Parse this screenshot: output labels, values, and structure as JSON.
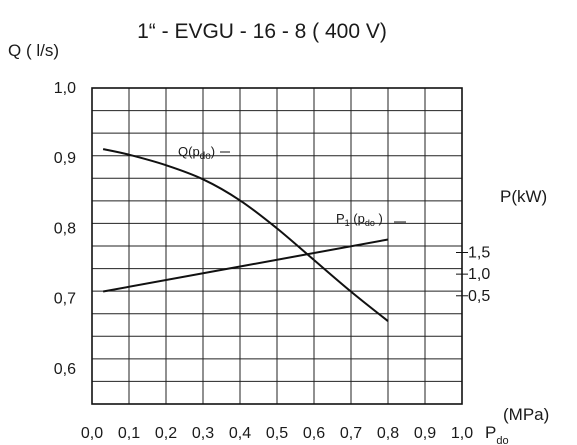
{
  "chart_data": {
    "type": "line",
    "title": "1“ - EVGU - 16 - 8 ( 400 V)",
    "x_axis": {
      "label_main": "P",
      "label_sub": "do",
      "unit": "(MPa)",
      "range": [
        0,
        1.0
      ],
      "ticks": [
        0.0,
        0.1,
        0.2,
        0.3,
        0.4,
        0.5,
        0.6,
        0.7,
        0.8,
        0.9,
        1.0
      ],
      "tick_labels": [
        "0,0",
        "0,1",
        "0,2",
        "0,3",
        "0,4",
        "0,5",
        "0,6",
        "0,7",
        "0,8",
        "0,9",
        "1,0"
      ]
    },
    "y_axis_left": {
      "label": "Q ( l/s)",
      "range": [
        0.55,
        1.0
      ],
      "ticks": [
        1.0,
        0.9,
        0.8,
        0.7,
        0.6
      ],
      "tick_labels": [
        "1,0",
        "0,9",
        "0,8",
        "0,7",
        "0,6"
      ]
    },
    "y_axis_right": {
      "label": "P(kW)",
      "range": [
        -2.0,
        5.3
      ],
      "ticks": [
        1.5,
        1.0,
        0.5
      ],
      "tick_labels": [
        "1,5",
        "1,0",
        "0,5"
      ]
    },
    "grid": true,
    "series": [
      {
        "name": "Q(p_do)",
        "label_main": "Q(p",
        "label_sub": "do",
        "label_end": ")",
        "axis": "left",
        "x": [
          0.03,
          0.1,
          0.2,
          0.3,
          0.4,
          0.5,
          0.6,
          0.7,
          0.8
        ],
        "y": [
          0.913,
          0.905,
          0.89,
          0.87,
          0.84,
          0.8,
          0.755,
          0.71,
          0.668
        ]
      },
      {
        "name": "P1 (p_do)",
        "label_main": "P",
        "label_sub1": "1",
        "label_mid": " (p",
        "label_sub2": "do",
        "label_end": " )",
        "axis": "right",
        "x": [
          0.03,
          0.8
        ],
        "y": [
          0.6,
          1.8
        ]
      }
    ]
  }
}
